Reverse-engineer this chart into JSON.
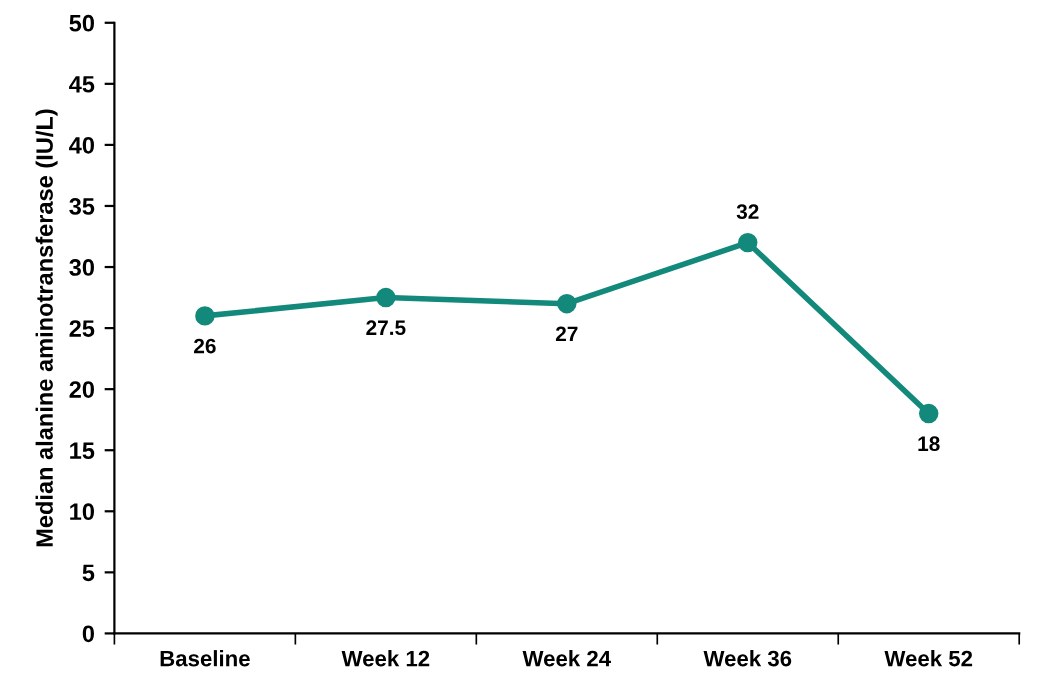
{
  "chart_data": {
    "type": "line",
    "ylabel": "Median alanine aminotransferase (IU/L)",
    "categories": [
      "Baseline",
      "Week 12",
      "Week 24",
      "Week 36",
      "Week 52"
    ],
    "series": [
      {
        "color": "#13897b",
        "values": [
          26,
          27.5,
          27,
          32,
          18
        ]
      }
    ],
    "ylim": [
      0,
      50
    ],
    "yticks": [
      0,
      5,
      10,
      15,
      20,
      25,
      30,
      35,
      40,
      45,
      50
    ],
    "marker": "circle",
    "line_style": "solid",
    "grid": false,
    "data_labels": true
  }
}
